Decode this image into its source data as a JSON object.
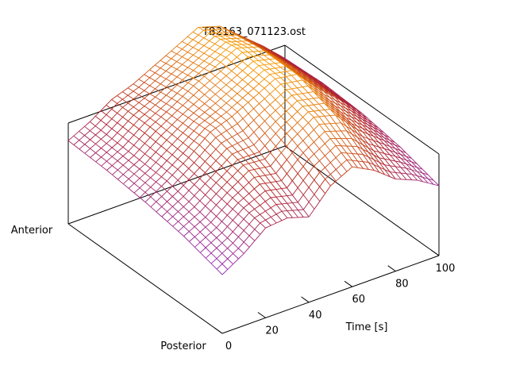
{
  "chart_data": {
    "type": "surface",
    "title": "TB2163_071123.ost",
    "xlabel": "Time [s]",
    "x_range": [
      0,
      100
    ],
    "x_ticks": [
      0,
      20,
      40,
      60,
      80,
      100
    ],
    "y_ticks": [
      "Posterior",
      "Anterior"
    ],
    "grid": false,
    "legend": "none",
    "colormap": [
      "#8a2be2",
      "#b22222",
      "#ffa500"
    ],
    "surface_grid": {
      "time": [
        0,
        10,
        20,
        30,
        40,
        50,
        60,
        70,
        80,
        90,
        100
      ],
      "position_fraction_posterior_to_anterior": [
        0,
        0.25,
        0.5,
        0.75,
        1.0
      ],
      "relative_height_0_to_1": [
        [
          0.1,
          0.22,
          0.38,
          0.4,
          0.34,
          0.55,
          0.65,
          0.55,
          0.4,
          0.32,
          0.2
        ],
        [
          0.2,
          0.3,
          0.45,
          0.58,
          0.55,
          0.72,
          0.85,
          0.8,
          0.6,
          0.45,
          0.3
        ],
        [
          0.26,
          0.38,
          0.52,
          0.68,
          0.75,
          0.85,
          0.95,
          0.92,
          0.72,
          0.55,
          0.36
        ],
        [
          0.3,
          0.4,
          0.55,
          0.66,
          0.78,
          0.88,
          0.98,
          0.92,
          0.74,
          0.56,
          0.38
        ],
        [
          0.32,
          0.42,
          0.55,
          0.62,
          0.72,
          0.82,
          0.92,
          0.86,
          0.7,
          0.54,
          0.36
        ]
      ]
    }
  }
}
